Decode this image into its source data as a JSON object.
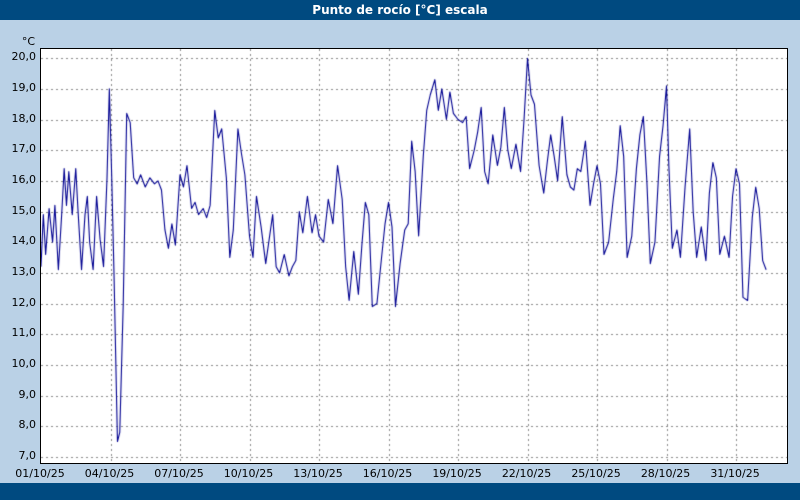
{
  "window": {
    "title": "Punto de rocío [°C] escala"
  },
  "colors": {
    "frame_bg": "#bad1e6",
    "bar_bg": "#004a80",
    "bar_text": "#ffffff",
    "plot_bg": "#ffffff",
    "plot_border": "#000000",
    "grid": "#8c8c8c",
    "tick_text": "#000000"
  },
  "chart_data": {
    "type": "line",
    "title": "Punto de rocío [°C] escala",
    "xlabel": "",
    "ylabel": "°C",
    "y_unit_label": "°C",
    "grid": "dashed",
    "legend": "none",
    "line_color": "#000090",
    "x_range": [
      1,
      33.2
    ],
    "y_range": [
      6.8,
      20.3
    ],
    "x_tick_days": [
      1,
      4,
      7,
      10,
      13,
      16,
      19,
      22,
      25,
      28,
      31
    ],
    "x_tick_labels": [
      "01/10/25",
      "04/10/25",
      "07/10/25",
      "10/10/25",
      "13/10/25",
      "16/10/25",
      "19/10/25",
      "22/10/25",
      "25/10/25",
      "28/10/25",
      "31/10/25"
    ],
    "y_tick_values": [
      7,
      8,
      9,
      10,
      11,
      12,
      13,
      14,
      15,
      16,
      17,
      18,
      19,
      20
    ],
    "y_tick_labels": [
      "7,0",
      "8,0",
      "9,0",
      "10,0",
      "11,0",
      "12,0",
      "13,0",
      "14,0",
      "15,0",
      "16,0",
      "17,0",
      "18,0",
      "19,0",
      "20,0"
    ],
    "series": [
      {
        "name": "Punto de rocío",
        "points": [
          [
            1.0,
            13.2
          ],
          [
            1.1,
            14.9
          ],
          [
            1.2,
            13.6
          ],
          [
            1.35,
            15.1
          ],
          [
            1.5,
            14.0
          ],
          [
            1.6,
            15.2
          ],
          [
            1.75,
            13.1
          ],
          [
            1.9,
            15.0
          ],
          [
            2.0,
            16.4
          ],
          [
            2.1,
            15.2
          ],
          [
            2.2,
            16.3
          ],
          [
            2.35,
            14.9
          ],
          [
            2.5,
            16.4
          ],
          [
            2.6,
            15.0
          ],
          [
            2.75,
            13.1
          ],
          [
            2.9,
            14.9
          ],
          [
            3.0,
            15.5
          ],
          [
            3.1,
            14.0
          ],
          [
            3.25,
            13.1
          ],
          [
            3.4,
            15.5
          ],
          [
            3.55,
            14.1
          ],
          [
            3.7,
            13.2
          ],
          [
            3.85,
            16.1
          ],
          [
            3.95,
            19.0
          ],
          [
            4.05,
            16.2
          ],
          [
            4.15,
            13.0
          ],
          [
            4.3,
            7.5
          ],
          [
            4.4,
            7.8
          ],
          [
            4.55,
            12.0
          ],
          [
            4.7,
            18.2
          ],
          [
            4.85,
            17.9
          ],
          [
            5.0,
            16.1
          ],
          [
            5.15,
            15.9
          ],
          [
            5.3,
            16.2
          ],
          [
            5.5,
            15.8
          ],
          [
            5.7,
            16.1
          ],
          [
            5.9,
            15.9
          ],
          [
            6.05,
            16.0
          ],
          [
            6.2,
            15.7
          ],
          [
            6.35,
            14.4
          ],
          [
            6.5,
            13.8
          ],
          [
            6.65,
            14.6
          ],
          [
            6.8,
            13.9
          ],
          [
            7.0,
            16.2
          ],
          [
            7.15,
            15.8
          ],
          [
            7.3,
            16.5
          ],
          [
            7.5,
            15.1
          ],
          [
            7.65,
            15.3
          ],
          [
            7.8,
            14.9
          ],
          [
            8.0,
            15.1
          ],
          [
            8.15,
            14.8
          ],
          [
            8.3,
            15.2
          ],
          [
            8.5,
            18.3
          ],
          [
            8.65,
            17.4
          ],
          [
            8.8,
            17.7
          ],
          [
            9.0,
            16.1
          ],
          [
            9.15,
            13.5
          ],
          [
            9.3,
            14.4
          ],
          [
            9.5,
            17.7
          ],
          [
            9.65,
            16.9
          ],
          [
            9.8,
            16.2
          ],
          [
            10.0,
            14.2
          ],
          [
            10.15,
            13.5
          ],
          [
            10.3,
            15.5
          ],
          [
            10.5,
            14.5
          ],
          [
            10.7,
            13.3
          ],
          [
            10.85,
            14.1
          ],
          [
            11.0,
            14.9
          ],
          [
            11.15,
            13.2
          ],
          [
            11.3,
            13.0
          ],
          [
            11.5,
            13.6
          ],
          [
            11.7,
            12.9
          ],
          [
            11.85,
            13.2
          ],
          [
            12.0,
            13.4
          ],
          [
            12.15,
            15.0
          ],
          [
            12.3,
            14.3
          ],
          [
            12.5,
            15.5
          ],
          [
            12.7,
            14.3
          ],
          [
            12.85,
            14.9
          ],
          [
            13.0,
            14.2
          ],
          [
            13.2,
            14.0
          ],
          [
            13.4,
            15.4
          ],
          [
            13.6,
            14.6
          ],
          [
            13.8,
            16.5
          ],
          [
            14.0,
            15.4
          ],
          [
            14.15,
            13.2
          ],
          [
            14.3,
            12.1
          ],
          [
            14.5,
            13.7
          ],
          [
            14.7,
            12.3
          ],
          [
            14.85,
            13.9
          ],
          [
            15.0,
            15.3
          ],
          [
            15.15,
            14.9
          ],
          [
            15.3,
            11.9
          ],
          [
            15.5,
            12.0
          ],
          [
            15.7,
            13.5
          ],
          [
            15.85,
            14.6
          ],
          [
            16.0,
            15.3
          ],
          [
            16.15,
            14.5
          ],
          [
            16.3,
            11.9
          ],
          [
            16.5,
            13.3
          ],
          [
            16.7,
            14.4
          ],
          [
            16.85,
            14.6
          ],
          [
            17.0,
            17.3
          ],
          [
            17.15,
            16.3
          ],
          [
            17.3,
            14.2
          ],
          [
            17.5,
            16.8
          ],
          [
            17.65,
            18.3
          ],
          [
            17.8,
            18.8
          ],
          [
            18.0,
            19.3
          ],
          [
            18.15,
            18.3
          ],
          [
            18.3,
            19.0
          ],
          [
            18.5,
            18.0
          ],
          [
            18.65,
            18.9
          ],
          [
            18.8,
            18.2
          ],
          [
            19.0,
            18.0
          ],
          [
            19.2,
            17.9
          ],
          [
            19.35,
            18.1
          ],
          [
            19.5,
            16.4
          ],
          [
            19.7,
            17.0
          ],
          [
            19.85,
            17.6
          ],
          [
            20.0,
            18.4
          ],
          [
            20.15,
            16.3
          ],
          [
            20.3,
            15.9
          ],
          [
            20.5,
            17.5
          ],
          [
            20.7,
            16.5
          ],
          [
            20.85,
            17.1
          ],
          [
            21.0,
            18.4
          ],
          [
            21.15,
            17.0
          ],
          [
            21.3,
            16.4
          ],
          [
            21.5,
            17.2
          ],
          [
            21.7,
            16.3
          ],
          [
            21.85,
            18.0
          ],
          [
            22.0,
            20.0
          ],
          [
            22.15,
            18.8
          ],
          [
            22.3,
            18.5
          ],
          [
            22.5,
            16.5
          ],
          [
            22.7,
            15.6
          ],
          [
            22.85,
            16.6
          ],
          [
            23.0,
            17.5
          ],
          [
            23.15,
            16.8
          ],
          [
            23.3,
            16.0
          ],
          [
            23.5,
            18.1
          ],
          [
            23.7,
            16.2
          ],
          [
            23.85,
            15.8
          ],
          [
            24.0,
            15.7
          ],
          [
            24.15,
            16.4
          ],
          [
            24.3,
            16.3
          ],
          [
            24.5,
            17.3
          ],
          [
            24.7,
            15.2
          ],
          [
            24.85,
            15.9
          ],
          [
            25.0,
            16.5
          ],
          [
            25.15,
            15.9
          ],
          [
            25.3,
            13.6
          ],
          [
            25.5,
            14.0
          ],
          [
            25.7,
            15.4
          ],
          [
            25.85,
            16.3
          ],
          [
            26.0,
            17.8
          ],
          [
            26.15,
            16.8
          ],
          [
            26.3,
            13.5
          ],
          [
            26.5,
            14.2
          ],
          [
            26.7,
            16.4
          ],
          [
            26.85,
            17.5
          ],
          [
            27.0,
            18.1
          ],
          [
            27.15,
            16.0
          ],
          [
            27.3,
            13.3
          ],
          [
            27.5,
            14.0
          ],
          [
            27.7,
            16.8
          ],
          [
            27.85,
            17.8
          ],
          [
            28.0,
            19.1
          ],
          [
            28.1,
            16.5
          ],
          [
            28.25,
            13.8
          ],
          [
            28.45,
            14.4
          ],
          [
            28.6,
            13.5
          ],
          [
            28.8,
            15.8
          ],
          [
            29.0,
            17.7
          ],
          [
            29.15,
            15.0
          ],
          [
            29.3,
            13.5
          ],
          [
            29.5,
            14.5
          ],
          [
            29.7,
            13.4
          ],
          [
            29.85,
            15.6
          ],
          [
            30.0,
            16.6
          ],
          [
            30.15,
            16.1
          ],
          [
            30.3,
            13.6
          ],
          [
            30.5,
            14.2
          ],
          [
            30.7,
            13.5
          ],
          [
            30.85,
            15.5
          ],
          [
            31.0,
            16.4
          ],
          [
            31.15,
            15.9
          ],
          [
            31.3,
            12.2
          ],
          [
            31.5,
            12.1
          ],
          [
            31.7,
            14.8
          ],
          [
            31.85,
            15.8
          ],
          [
            32.0,
            15.1
          ],
          [
            32.15,
            13.4
          ],
          [
            32.3,
            13.1
          ]
        ]
      }
    ]
  }
}
